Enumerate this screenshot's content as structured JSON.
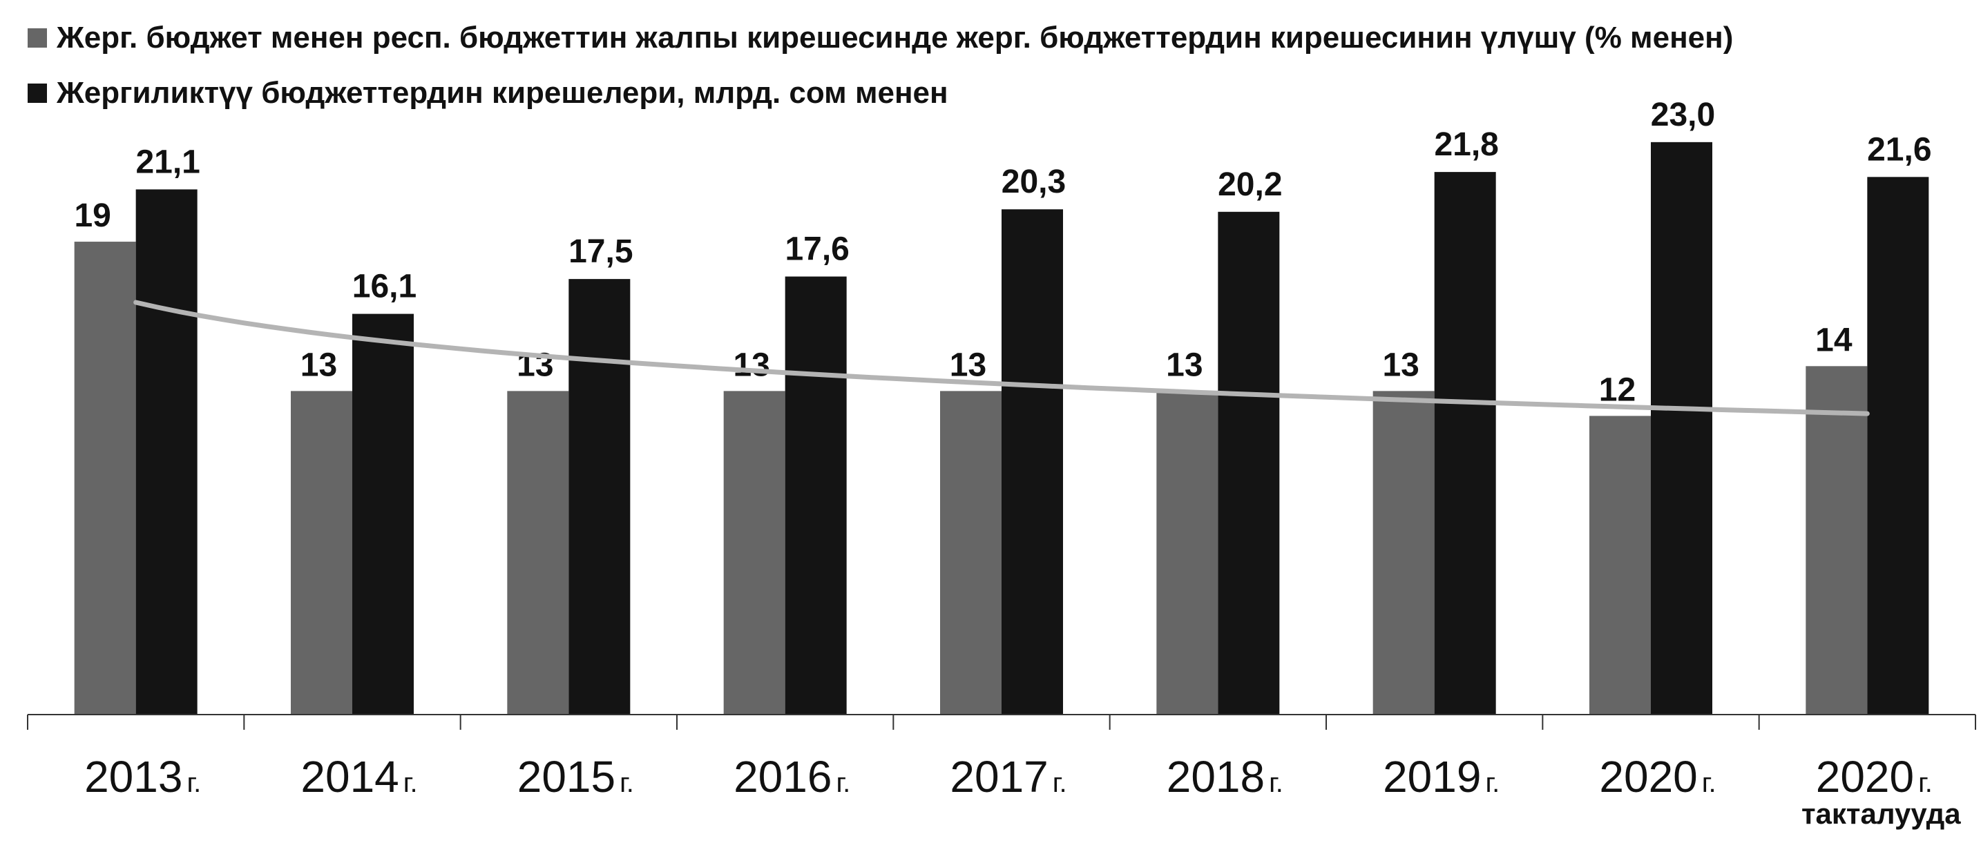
{
  "chart_data": {
    "type": "bar",
    "categories": [
      {
        "year": "2013",
        "suffix": "г.",
        "note": ""
      },
      {
        "year": "2014",
        "suffix": "г.",
        "note": ""
      },
      {
        "year": "2015",
        "suffix": "г.",
        "note": ""
      },
      {
        "year": "2016",
        "suffix": "г.",
        "note": ""
      },
      {
        "year": "2017",
        "suffix": "г.",
        "note": ""
      },
      {
        "year": "2018",
        "suffix": "г.",
        "note": ""
      },
      {
        "year": "2019",
        "suffix": "г.",
        "note": ""
      },
      {
        "year": "2020",
        "suffix": "г.",
        "note": ""
      },
      {
        "year": "2020",
        "suffix": "г.",
        "note": "такталууда"
      }
    ],
    "series": [
      {
        "name": "Жерг. бюджет менен респ. бюджеттин жалпы кирешесинде жерг. бюджеттердин кирешесинин үлүшү (% менен)",
        "color": "#666666",
        "values": [
          19,
          13,
          13,
          13,
          13,
          13,
          13,
          12,
          14
        ],
        "labels": [
          "19",
          "13",
          "13",
          "13",
          "13",
          "13",
          "13",
          "12",
          "14"
        ]
      },
      {
        "name": "Жергиликтүү бюджеттердин кирешелери, млрд. сом менен",
        "color": "#141414",
        "values": [
          21.1,
          16.1,
          17.5,
          17.6,
          20.3,
          20.2,
          21.8,
          23.0,
          21.6
        ],
        "labels": [
          "21,1",
          "16,1",
          "17,5",
          "17,6",
          "20,3",
          "20,2",
          "21,8",
          "23,0",
          "21,6"
        ]
      }
    ],
    "trendline": {
      "series_index": 0,
      "type": "logarithmic",
      "color": "#b4b4b4"
    },
    "ylim": [
      0,
      25
    ],
    "grid": false,
    "legend_position": "top-left"
  }
}
